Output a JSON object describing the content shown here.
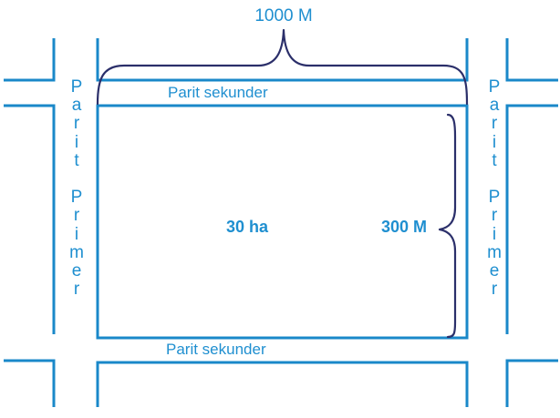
{
  "labels": {
    "top_dimension": "1000 M",
    "secondary_canal_top": "Parit sekunder",
    "secondary_canal_bottom": "Parit sekunder",
    "area": "30 ha",
    "side_dimension": "300 M",
    "primary_canal_left": "Parit Primer",
    "primary_canal_right": "Parit Primer"
  },
  "colors": {
    "canal": "#1a88c9",
    "text": "#1f8fd0",
    "brace": "#2b2f6a"
  }
}
